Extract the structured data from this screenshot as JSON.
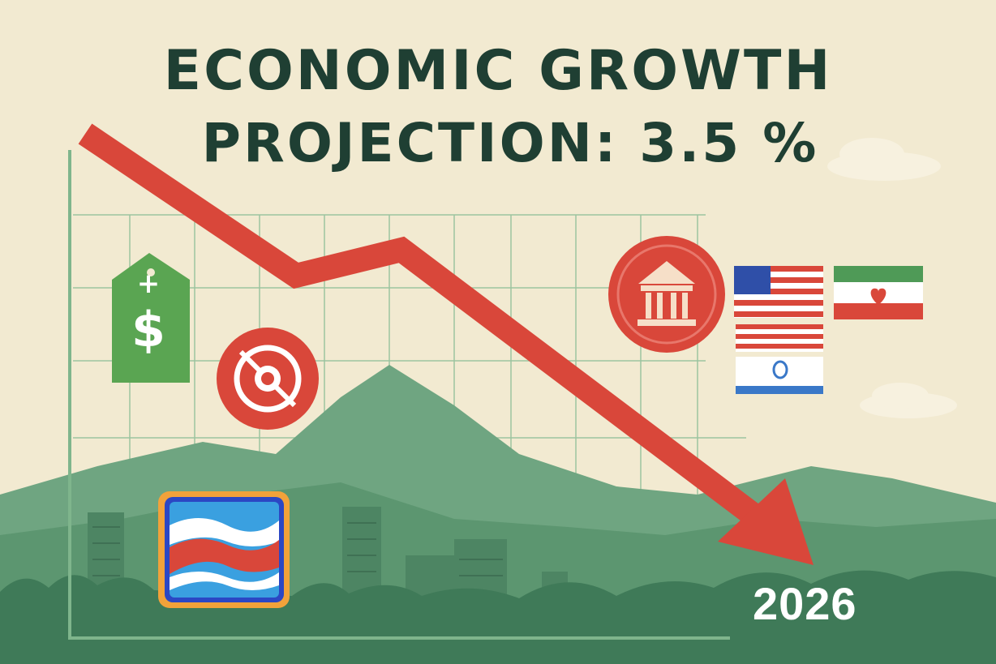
{
  "poster": {
    "title_line_1": "ECONOMIC GROWTH",
    "title_line_2": "PROJECTION: 3.5 %",
    "year": "2026"
  },
  "price_tag": {
    "plus": "+",
    "dollar": "$"
  },
  "icons": [
    "price-tag-icon",
    "target-icon",
    "bank-building-icon",
    "flag-icon",
    "wave-flag-icon",
    "downward-trend-arrow-icon"
  ],
  "colors": {
    "background": "#f2ead1",
    "title": "#1f3f33",
    "arrow": "#d9473a",
    "hills": "#5f9a75",
    "grid": "#8fbf95",
    "tag_green": "#5aa552"
  }
}
